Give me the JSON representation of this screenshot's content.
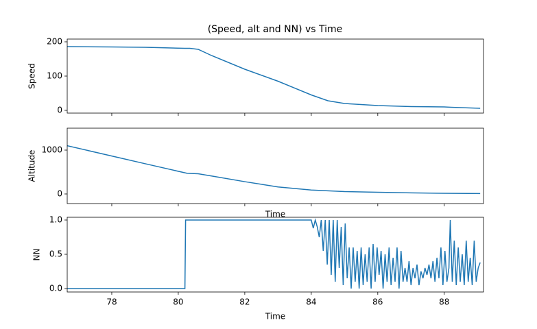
{
  "chart_data": [
    {
      "type": "line",
      "title": "(Speed, alt and NN) vs Time",
      "ylabel": "Speed",
      "color": "#1f77b4",
      "x": [
        76.66,
        78,
        79,
        80.2,
        80.35,
        80.6,
        81,
        82,
        83,
        84,
        84.5,
        85,
        86,
        87,
        88,
        88.2,
        89.08
      ],
      "values": [
        186,
        185,
        184,
        181,
        181,
        178,
        160,
        120,
        85,
        45,
        28,
        20,
        14,
        11,
        10,
        9,
        6
      ],
      "xlim": [
        76.66,
        89.18
      ],
      "xticks": [
        78,
        80,
        82,
        84,
        86,
        88
      ],
      "show_xticklabels": false,
      "ylim": [
        -8,
        208
      ],
      "yticks": [
        0,
        100,
        200
      ]
    },
    {
      "type": "line",
      "ylabel": "Altitude",
      "xlabel": "Time",
      "color": "#1f77b4",
      "x": [
        76.66,
        78,
        79,
        80.27,
        80.6,
        81,
        82,
        83,
        84,
        85,
        86,
        87,
        88,
        89.08
      ],
      "values": [
        1100,
        865,
        690,
        470,
        460,
        410,
        280,
        160,
        90,
        55,
        38,
        25,
        15,
        10
      ],
      "xlim": [
        76.66,
        89.18
      ],
      "xticks": [
        78,
        80,
        82,
        84,
        86,
        88
      ],
      "show_xticklabels": false,
      "ylim": [
        -219,
        1500
      ],
      "yticks": [
        0,
        1000
      ]
    },
    {
      "type": "line",
      "ylabel": "NN",
      "xlabel": "Time",
      "color": "#1f77b4",
      "x": [
        76.66,
        80.2,
        80.22,
        84.0,
        84.06,
        84.12,
        84.18,
        84.24,
        84.3,
        84.36,
        84.42,
        84.48,
        84.54,
        84.6,
        84.66,
        84.72,
        84.78,
        84.84,
        84.9,
        84.96,
        85.02,
        85.08,
        85.14,
        85.2,
        85.26,
        85.32,
        85.38,
        85.44,
        85.5,
        85.56,
        85.62,
        85.68,
        85.74,
        85.8,
        85.86,
        85.92,
        85.98,
        86.04,
        86.1,
        86.16,
        86.22,
        86.28,
        86.34,
        86.4,
        86.46,
        86.52,
        86.58,
        86.64,
        86.7,
        86.76,
        86.82,
        86.88,
        86.94,
        87.0,
        87.06,
        87.12,
        87.18,
        87.24,
        87.3,
        87.36,
        87.42,
        87.48,
        87.54,
        87.6,
        87.66,
        87.72,
        87.78,
        87.84,
        87.9,
        87.96,
        88.02,
        88.08,
        88.14,
        88.18,
        88.24,
        88.3,
        88.36,
        88.42,
        88.48,
        88.54,
        88.6,
        88.66,
        88.72,
        88.78,
        88.84,
        88.9,
        88.96,
        89.02,
        89.08
      ],
      "values": [
        0,
        0,
        1,
        1,
        0.88,
        1,
        0.9,
        0.75,
        1,
        0.55,
        1,
        0.35,
        1,
        0.2,
        1,
        0.1,
        1,
        0.3,
        0.9,
        0.05,
        0.95,
        0.15,
        0.6,
        0,
        0.6,
        0.1,
        0.55,
        0,
        0.6,
        0.05,
        0.5,
        0.1,
        0.6,
        0,
        0.65,
        0.1,
        0.6,
        0.2,
        0.55,
        0,
        0.5,
        0.1,
        0.6,
        0.05,
        0.45,
        0.1,
        0.6,
        0,
        0.55,
        0.1,
        0.3,
        0.1,
        0.4,
        0.05,
        0.3,
        0.15,
        0.35,
        0.05,
        0.25,
        0.15,
        0.3,
        0.2,
        0.35,
        0.15,
        0.4,
        0.1,
        0.45,
        0.15,
        0.6,
        0.05,
        0.55,
        0.1,
        0.3,
        1,
        0.1,
        0.7,
        0.05,
        0.6,
        0.1,
        0.5,
        0.05,
        0.7,
        0.1,
        0.45,
        0.05,
        0.7,
        0.1,
        0.3,
        0.38
      ],
      "xlim": [
        76.66,
        89.18
      ],
      "xticks": [
        78,
        80,
        82,
        84,
        86,
        88
      ],
      "show_xticklabels": true,
      "ylim": [
        -0.05,
        1.04
      ],
      "yticks": [
        0.0,
        0.5,
        1.0
      ]
    }
  ]
}
